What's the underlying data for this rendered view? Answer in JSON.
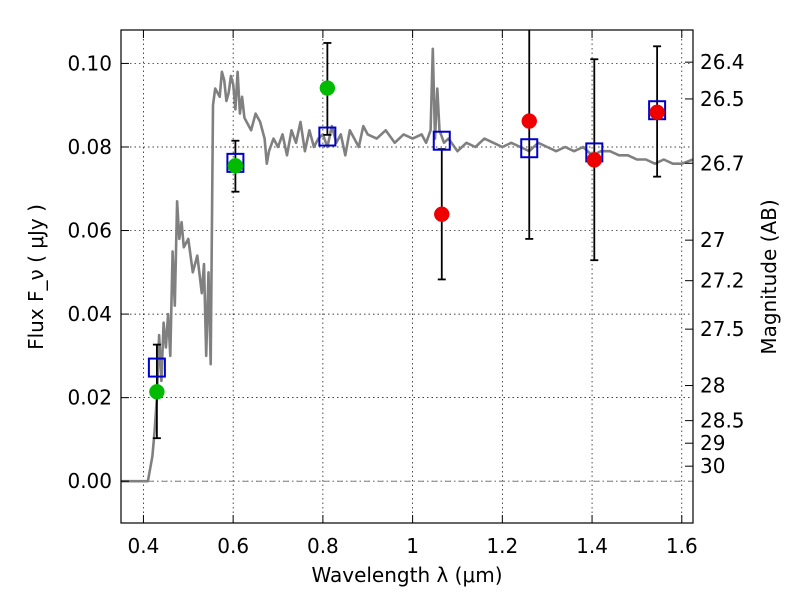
{
  "chart_data": {
    "type": "scatter",
    "xlabel": "Wavelength  λ (μm)",
    "ylabel": "Flux  F_ν  ( μJy )",
    "ylabel_right": "Magnitude (AB)",
    "xlim": [
      0.35,
      1.625
    ],
    "ylim": [
      -0.01,
      0.108
    ],
    "grid": true,
    "x_ticks": [
      0.4,
      0.6,
      0.8,
      1.0,
      1.2,
      1.4,
      1.6
    ],
    "x_tick_labels": [
      "0.4",
      "0.6",
      "0.8",
      "1",
      "1.2",
      "1.4",
      "1.6"
    ],
    "y_ticks": [
      0.0,
      0.02,
      0.04,
      0.06,
      0.08,
      0.1
    ],
    "y_tick_labels": [
      "0.00",
      "0.02",
      "0.04",
      "0.06",
      "0.08",
      "0.10"
    ],
    "right_ticks": [
      {
        "label": "26.4",
        "flux": 0.1003
      },
      {
        "label": "26.5",
        "flux": 0.0915
      },
      {
        "label": "26.7",
        "flux": 0.0761
      },
      {
        "label": "27",
        "flux": 0.0577
      },
      {
        "label": "27.2",
        "flux": 0.048
      },
      {
        "label": "27.5",
        "flux": 0.0364
      },
      {
        "label": "28",
        "flux": 0.0229
      },
      {
        "label": "28.5",
        "flux": 0.0145
      },
      {
        "label": "29",
        "flux": 0.0091
      },
      {
        "label": "30",
        "flux": 0.0036
      }
    ],
    "series": [
      {
        "kind": "line",
        "color": "#808080",
        "x": [
          0.35,
          0.41,
          0.42,
          0.425,
          0.43,
          0.435,
          0.44,
          0.445,
          0.45,
          0.455,
          0.46,
          0.465,
          0.47,
          0.475,
          0.48,
          0.485,
          0.49,
          0.5,
          0.51,
          0.52,
          0.53,
          0.535,
          0.54,
          0.545,
          0.55,
          0.555,
          0.56,
          0.57,
          0.575,
          0.58,
          0.585,
          0.59,
          0.595,
          0.6,
          0.605,
          0.61,
          0.615,
          0.62,
          0.625,
          0.63,
          0.64,
          0.65,
          0.66,
          0.67,
          0.675,
          0.68,
          0.69,
          0.7,
          0.71,
          0.72,
          0.73,
          0.74,
          0.75,
          0.76,
          0.77,
          0.78,
          0.79,
          0.8,
          0.81,
          0.82,
          0.83,
          0.84,
          0.85,
          0.86,
          0.87,
          0.88,
          0.89,
          0.9,
          0.92,
          0.94,
          0.96,
          0.98,
          1.0,
          1.02,
          1.03,
          1.04,
          1.045,
          1.05,
          1.055,
          1.06,
          1.07,
          1.08,
          1.1,
          1.12,
          1.14,
          1.16,
          1.18,
          1.2,
          1.22,
          1.24,
          1.26,
          1.28,
          1.3,
          1.32,
          1.34,
          1.36,
          1.38,
          1.4,
          1.42,
          1.44,
          1.46,
          1.48,
          1.5,
          1.52,
          1.54,
          1.56,
          1.58,
          1.6,
          1.625
        ],
        "y": [
          0.0,
          0.0,
          0.006,
          0.012,
          0.02,
          0.035,
          0.024,
          0.038,
          0.032,
          0.04,
          0.03,
          0.055,
          0.042,
          0.067,
          0.058,
          0.062,
          0.056,
          0.058,
          0.05,
          0.054,
          0.045,
          0.052,
          0.03,
          0.05,
          0.028,
          0.09,
          0.094,
          0.092,
          0.098,
          0.096,
          0.091,
          0.093,
          0.097,
          0.095,
          0.089,
          0.098,
          0.088,
          0.092,
          0.087,
          0.086,
          0.084,
          0.088,
          0.086,
          0.082,
          0.076,
          0.079,
          0.082,
          0.08,
          0.083,
          0.078,
          0.084,
          0.081,
          0.086,
          0.079,
          0.084,
          0.08,
          0.082,
          0.083,
          0.08,
          0.085,
          0.081,
          0.083,
          0.078,
          0.084,
          0.082,
          0.08,
          0.085,
          0.083,
          0.082,
          0.084,
          0.081,
          0.083,
          0.082,
          0.083,
          0.081,
          0.084,
          0.1035,
          0.082,
          0.094,
          0.084,
          0.081,
          0.082,
          0.079,
          0.081,
          0.08,
          0.082,
          0.081,
          0.08,
          0.081,
          0.08,
          0.079,
          0.081,
          0.08,
          0.079,
          0.08,
          0.079,
          0.08,
          0.078,
          0.079,
          0.079,
          0.078,
          0.078,
          0.077,
          0.077,
          0.076,
          0.077,
          0.076,
          0.076,
          0.077
        ]
      },
      {
        "kind": "points",
        "marker": "square",
        "color": "#0000cc",
        "x": [
          0.43,
          0.605,
          0.81,
          1.065,
          1.26,
          1.405,
          1.545
        ],
        "y": [
          0.0272,
          0.0762,
          0.0825,
          0.0815,
          0.0797,
          0.0787,
          0.0888
        ]
      },
      {
        "kind": "points",
        "marker": "circle",
        "color": "#00bb00",
        "x": [
          0.43,
          0.605,
          0.81
        ],
        "y": [
          0.0214,
          0.0755,
          0.0941
        ]
      },
      {
        "kind": "points",
        "marker": "circle",
        "color": "#ee0000",
        "x": [
          1.065,
          1.26,
          1.405,
          1.545
        ],
        "y": [
          0.0639,
          0.0862,
          0.0769,
          0.0883
        ]
      },
      {
        "kind": "errorbars",
        "color": "#000000",
        "x": [
          0.43,
          0.605,
          0.81,
          1.065,
          1.26,
          1.405,
          1.545
        ],
        "low": [
          0.0103,
          0.0693,
          0.0829,
          0.0483,
          0.058,
          0.0529,
          0.0729
        ],
        "high": [
          0.0327,
          0.0815,
          0.1049,
          0.0795,
          0.113,
          0.101,
          0.1041
        ]
      }
    ],
    "reference_line": {
      "y": 0.0,
      "style": "dash-dot",
      "color": "#808080"
    }
  }
}
